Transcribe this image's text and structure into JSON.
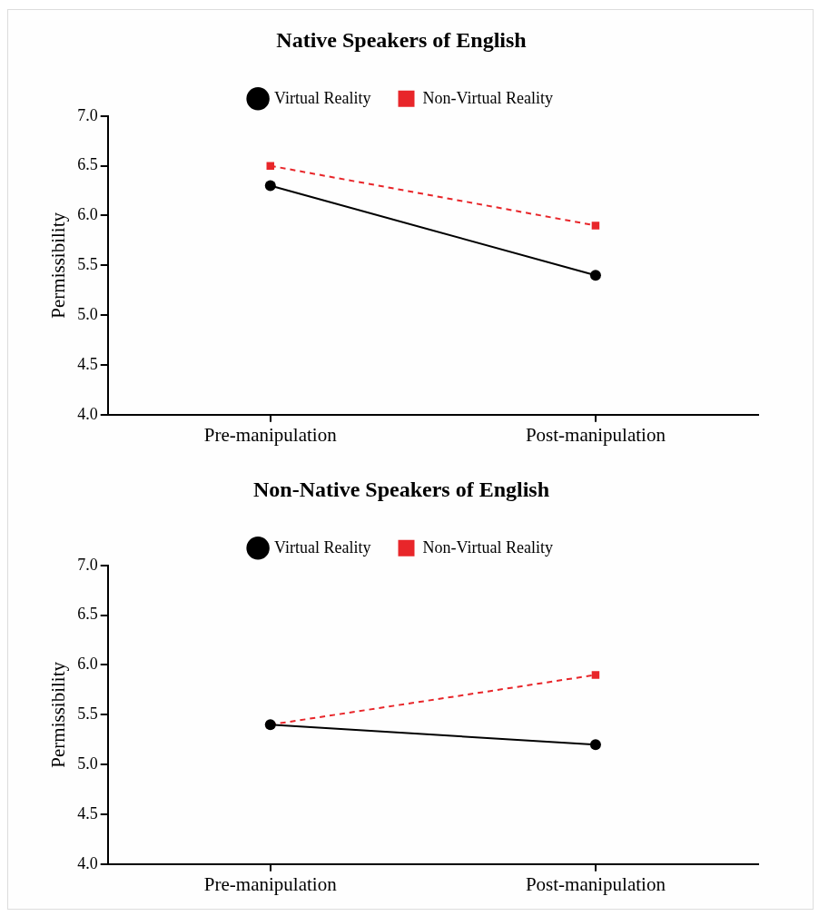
{
  "chart_data": [
    {
      "type": "line",
      "title": "Native Speakers of English",
      "ylabel": "Permissibility",
      "categories": [
        "Pre-manipulation",
        "Post-manipulation"
      ],
      "legend": "top",
      "ylim": [
        4,
        7
      ],
      "yticks": [
        {
          "value": 4,
          "label": "4.0"
        },
        {
          "value": 4.5,
          "label": "4.5"
        },
        {
          "value": 5,
          "label": "5.0"
        },
        {
          "value": 5.5,
          "label": "5.5"
        },
        {
          "value": 6,
          "label": "6.0"
        },
        {
          "value": 6.5,
          "label": "6.5"
        },
        {
          "value": 7,
          "label": "7.0"
        }
      ],
      "series": [
        {
          "name": "Virtual Reality",
          "color": "#000000",
          "marker": "circle",
          "line_style": "solid",
          "values": [
            6.3,
            5.4
          ]
        },
        {
          "name": "Non-Virtual Reality",
          "color": "#e8262a",
          "marker": "square",
          "line_style": "dashed",
          "values": [
            6.5,
            5.9
          ]
        }
      ]
    },
    {
      "type": "line",
      "title": "Non-Native Speakers of English",
      "ylabel": "Permissibility",
      "categories": [
        "Pre-manipulation",
        "Post-manipulation"
      ],
      "legend": "top",
      "ylim": [
        4,
        7
      ],
      "yticks": [
        {
          "value": 4,
          "label": "4.0"
        },
        {
          "value": 4.5,
          "label": "4.5"
        },
        {
          "value": 5,
          "label": "5.0"
        },
        {
          "value": 5.5,
          "label": "5.5"
        },
        {
          "value": 6,
          "label": "6.0"
        },
        {
          "value": 6.5,
          "label": "6.5"
        },
        {
          "value": 7,
          "label": "7.0"
        }
      ],
      "series": [
        {
          "name": "Virtual Reality",
          "color": "#000000",
          "marker": "circle",
          "line_style": "solid",
          "values": [
            5.4,
            5.2
          ]
        },
        {
          "name": "Non-Virtual Reality",
          "color": "#e8262a",
          "marker": "square",
          "line_style": "dashed",
          "values": [
            5.4,
            5.9
          ]
        }
      ]
    }
  ]
}
